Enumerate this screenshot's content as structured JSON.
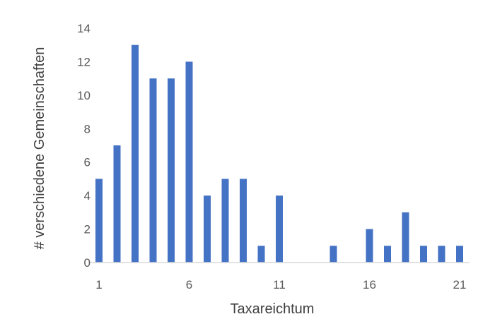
{
  "chart_data": {
    "type": "bar",
    "title": "",
    "xlabel": "Taxareichtum",
    "ylabel": "# verschiedene Gemeinschaften",
    "x": [
      1,
      2,
      3,
      4,
      5,
      6,
      7,
      8,
      9,
      10,
      11,
      12,
      13,
      14,
      15,
      16,
      17,
      18,
      19,
      20,
      21
    ],
    "values": [
      5,
      7,
      13,
      11,
      11,
      12,
      4,
      5,
      5,
      1,
      4,
      0,
      0,
      1,
      0,
      2,
      1,
      3,
      1,
      1,
      1
    ],
    "xticks": [
      "1",
      "6",
      "11",
      "16",
      "21"
    ],
    "yticks": [
      "0",
      "2",
      "4",
      "6",
      "8",
      "10",
      "12",
      "14"
    ],
    "ylim": [
      0,
      14
    ],
    "xlim": [
      1,
      21
    ],
    "grid": false,
    "legend": "none",
    "bar_color": "#4472C4"
  }
}
